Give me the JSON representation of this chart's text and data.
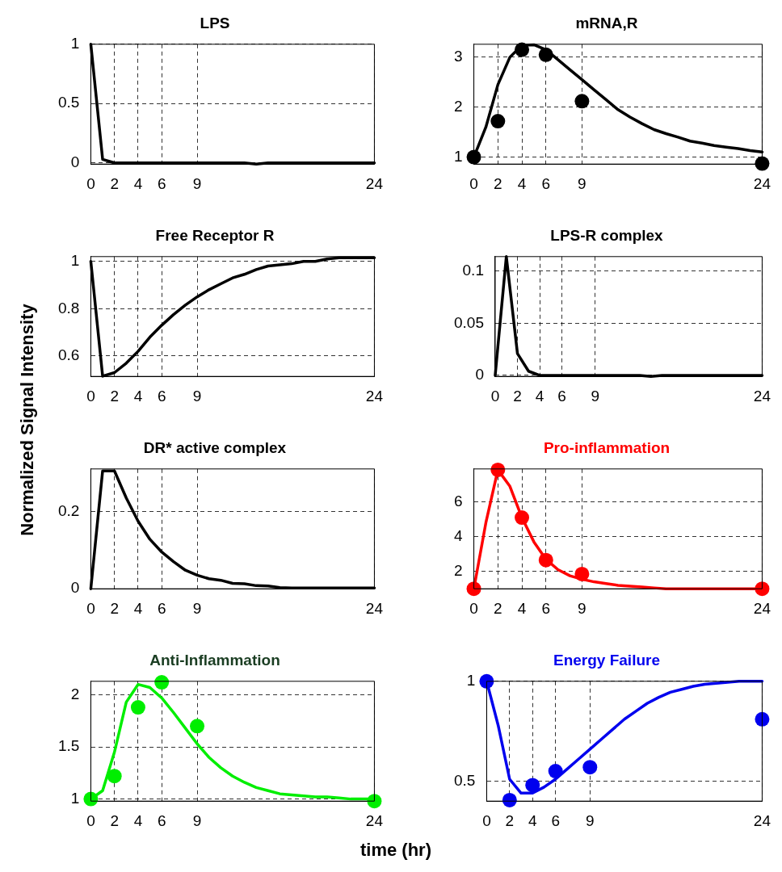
{
  "chart_data": [
    {
      "type": "line",
      "title": "LPS",
      "xlim": [
        0,
        24
      ],
      "xticks": [
        0,
        2,
        4,
        6,
        9,
        24
      ],
      "ylim": [
        -0.01,
        1
      ],
      "yticks": [
        0,
        0.5,
        1
      ],
      "grid": true,
      "series": [
        {
          "type": "line",
          "color": "#000000",
          "x": [
            0,
            1,
            2,
            3,
            4,
            5,
            6,
            7,
            8,
            9,
            10,
            11,
            12,
            13,
            14,
            15,
            16,
            17,
            18,
            19,
            20,
            21,
            22,
            23,
            24
          ],
          "values": [
            1,
            0.03,
            0,
            0,
            0,
            0,
            0,
            0,
            0,
            0,
            0,
            0,
            0,
            0,
            -0.01,
            0,
            0,
            0,
            0,
            0,
            0,
            0,
            0,
            0,
            0
          ]
        }
      ]
    },
    {
      "type": "line",
      "title": "mRNA,R",
      "xlim": [
        0,
        24
      ],
      "xticks": [
        0,
        2,
        4,
        6,
        9,
        24
      ],
      "ylim": [
        0.86,
        3.26
      ],
      "yticks": [
        1,
        2,
        3
      ],
      "grid": true,
      "series": [
        {
          "type": "line",
          "color": "#000000",
          "x": [
            0,
            1,
            2,
            3,
            4,
            5,
            6,
            7,
            8,
            9,
            10,
            11,
            12,
            13,
            14,
            15,
            16,
            17,
            18,
            19,
            20,
            21,
            22,
            23,
            24
          ],
          "values": [
            1,
            1.6,
            2.45,
            3.0,
            3.24,
            3.25,
            3.15,
            2.95,
            2.75,
            2.55,
            2.35,
            2.15,
            1.95,
            1.8,
            1.67,
            1.55,
            1.47,
            1.4,
            1.32,
            1.28,
            1.23,
            1.2,
            1.17,
            1.13,
            1.1
          ]
        },
        {
          "type": "scatter",
          "marker": "circle",
          "color": "#000000",
          "x": [
            0,
            2,
            4,
            6,
            9,
            24
          ],
          "values": [
            1,
            1.72,
            3.15,
            3.05,
            2.12,
            0.87
          ]
        }
      ]
    },
    {
      "type": "line",
      "title": "Free Receptor R",
      "ylabel": "Normalized Signal Intensity",
      "xlim": [
        0,
        24
      ],
      "xticks": [
        0,
        2,
        4,
        6,
        9,
        24
      ],
      "ylim": [
        0.514,
        1.02
      ],
      "yticks": [
        0.6,
        0.8,
        1
      ],
      "grid": true,
      "series": [
        {
          "type": "line",
          "color": "#000000",
          "x": [
            0,
            1,
            2,
            3,
            4,
            5,
            6,
            7,
            8,
            9,
            10,
            11,
            12,
            13,
            14,
            15,
            16,
            17,
            18,
            19,
            20,
            21,
            22,
            24
          ],
          "values": [
            1,
            0.515,
            0.53,
            0.57,
            0.62,
            0.68,
            0.73,
            0.775,
            0.815,
            0.85,
            0.88,
            0.905,
            0.93,
            0.945,
            0.965,
            0.98,
            0.985,
            0.99,
            1.0,
            1.0,
            1.01,
            1.015,
            1.015,
            1.015
          ]
        }
      ]
    },
    {
      "type": "line",
      "title": "LPS-R complex",
      "xlim": [
        0,
        24
      ],
      "xticks": [
        0,
        2,
        4,
        6,
        9,
        24
      ],
      "ylim": [
        -0.001,
        0.114
      ],
      "yticks": [
        0,
        0.05,
        0.1
      ],
      "grid": true,
      "series": [
        {
          "type": "line",
          "color": "#000000",
          "x": [
            0,
            1,
            2,
            3,
            4,
            5,
            6,
            7,
            8,
            9,
            10,
            11,
            12,
            13,
            14,
            15,
            16,
            17,
            18,
            19,
            20,
            21,
            22,
            23,
            24
          ],
          "values": [
            0,
            0.114,
            0.021,
            0.004,
            0,
            0,
            0,
            0,
            0,
            0,
            0,
            0,
            0,
            0,
            -0.001,
            0,
            0,
            0,
            0,
            0,
            0,
            0,
            0,
            0,
            0
          ]
        }
      ]
    },
    {
      "type": "line",
      "title": "DR* active complex",
      "xlim": [
        0,
        24
      ],
      "xticks": [
        0,
        2,
        4,
        6,
        9,
        24
      ],
      "ylim": [
        0,
        0.31
      ],
      "yticks": [
        0,
        0.2
      ],
      "grid": true,
      "series": [
        {
          "type": "line",
          "color": "#000000",
          "x": [
            0,
            1,
            2,
            3,
            4,
            5,
            6,
            7,
            8,
            9,
            10,
            11,
            12,
            13,
            14,
            15,
            16,
            17,
            18,
            19,
            20,
            21,
            22,
            23,
            24
          ],
          "values": [
            0,
            0.305,
            0.305,
            0.235,
            0.175,
            0.128,
            0.095,
            0.07,
            0.048,
            0.035,
            0.026,
            0.022,
            0.014,
            0.013,
            0.008,
            0.007,
            0.003,
            0.002,
            0.002,
            0.002,
            0.002,
            0.002,
            0.002,
            0.002,
            0.002
          ]
        }
      ]
    },
    {
      "type": "line",
      "title": "Pro-inflammation",
      "xlim": [
        0,
        24
      ],
      "xticks": [
        0,
        2,
        4,
        6,
        9,
        24
      ],
      "ylim": [
        1,
        7.9
      ],
      "yticks": [
        2,
        4,
        6
      ],
      "grid": true,
      "series": [
        {
          "type": "line",
          "color": "#ff0000",
          "x": [
            0,
            1,
            2,
            3,
            4,
            5,
            6,
            7,
            8,
            9,
            10,
            11,
            12,
            13,
            14,
            15,
            16,
            17,
            18,
            19,
            20,
            21,
            22,
            23,
            24
          ],
          "values": [
            1,
            4.8,
            7.85,
            6.9,
            5.1,
            3.7,
            2.7,
            2.1,
            1.75,
            1.55,
            1.4,
            1.3,
            1.2,
            1.15,
            1.1,
            1.05,
            1,
            1,
            1,
            1,
            1,
            1,
            1,
            1,
            1
          ]
        },
        {
          "type": "scatter",
          "marker": "circle",
          "color": "#ff0000",
          "x": [
            0,
            2,
            4,
            6,
            9,
            24
          ],
          "values": [
            1,
            7.85,
            5.1,
            2.65,
            1.85,
            1
          ]
        }
      ]
    },
    {
      "type": "line",
      "title": "Anti-Inflammation",
      "xlabel": "time (hr)",
      "xlim": [
        0,
        24
      ],
      "xticks": [
        0,
        2,
        4,
        6,
        9,
        24
      ],
      "ylim": [
        0.98,
        2.13
      ],
      "yticks": [
        1,
        1.5,
        2
      ],
      "grid": true,
      "series": [
        {
          "type": "line",
          "color": "#00ee00",
          "x": [
            0,
            1,
            2,
            3,
            4,
            5,
            6,
            7,
            8,
            9,
            10,
            11,
            12,
            13,
            14,
            15,
            16,
            17,
            18,
            19,
            20,
            21,
            22,
            23,
            24
          ],
          "values": [
            1,
            1.08,
            1.45,
            1.93,
            2.1,
            2.07,
            1.97,
            1.83,
            1.68,
            1.53,
            1.4,
            1.3,
            1.22,
            1.16,
            1.11,
            1.08,
            1.05,
            1.04,
            1.03,
            1.02,
            1.02,
            1.01,
            1,
            1,
            1
          ]
        },
        {
          "type": "scatter",
          "marker": "circle",
          "color": "#00ee00",
          "x": [
            0,
            2,
            4,
            6,
            9,
            24
          ],
          "values": [
            1,
            1.22,
            1.88,
            2.12,
            1.7,
            0.98
          ]
        }
      ]
    },
    {
      "type": "line",
      "title": "Energy Failure",
      "xlim": [
        0,
        24
      ],
      "xticks": [
        0,
        2,
        4,
        6,
        9,
        24
      ],
      "ylim": [
        0.4,
        1
      ],
      "yticks": [
        0.5,
        1
      ],
      "grid": true,
      "series": [
        {
          "type": "line",
          "color": "#0000ee",
          "x": [
            0,
            1,
            2,
            3,
            4,
            5,
            6,
            7,
            8,
            9,
            10,
            11,
            12,
            13,
            14,
            15,
            16,
            17,
            18,
            19,
            20,
            21,
            22,
            23,
            24
          ],
          "values": [
            1,
            0.78,
            0.51,
            0.44,
            0.44,
            0.47,
            0.51,
            0.56,
            0.61,
            0.66,
            0.71,
            0.76,
            0.81,
            0.85,
            0.89,
            0.92,
            0.945,
            0.96,
            0.975,
            0.985,
            0.99,
            0.995,
            1,
            1,
            1
          ]
        },
        {
          "type": "scatter",
          "marker": "circle",
          "color": "#0000ee",
          "x": [
            0,
            2,
            4,
            6,
            9,
            24
          ],
          "values": [
            1,
            0.405,
            0.48,
            0.55,
            0.57,
            0.81
          ]
        }
      ]
    }
  ]
}
